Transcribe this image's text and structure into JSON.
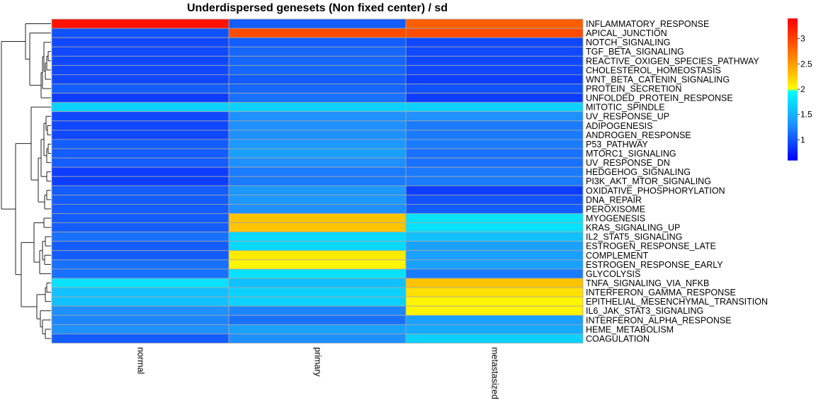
{
  "chart_data": {
    "type": "heatmap",
    "title": "Underdispersed genesets (Non fixed center) / sd",
    "columns": [
      "normal",
      "primary",
      "metastasized"
    ],
    "rows": [
      "INFLAMMATORY_RESPONSE",
      "APICAL_JUNCTION",
      "NOTCH_SIGNALING",
      "TGF_BETA_SIGNALING",
      "REACTIVE_OXIGEN_SPECIES_PATHWAY",
      "CHOLESTEROL_HOMEOSTASIS",
      "WNT_BETA_CATENIN_SIGNALING",
      "PROTEIN_SECRETION",
      "UNFOLDED_PROTEIN_RESPONSE",
      "MITOTIC_SPINDLE",
      "UV_RESPONSE_UP",
      "ADIPOGENESIS",
      "ANDROGEN_RESPONSE",
      "P53_PATHWAY",
      "MTORC1_SIGNALING",
      "UV_RESPONSE_DN",
      "HEDGEHOG_SIGNALING",
      "PI3K_AKT_MTOR_SIGNALING",
      "OXIDATIVE_PHOSPHORYLATION",
      "DNA_REPAIR",
      "PEROXISOME",
      "MYOGENESIS",
      "KRAS_SIGNALING_UP",
      "IL2_STAT5_SIGNALING",
      "ESTROGEN_RESPONSE_LATE",
      "COMPLEMENT",
      "ESTROGEN_RESPONSE_EARLY",
      "GLYCOLYSIS",
      "TNFA_SIGNALING_VIA_NFKB",
      "INTERFERON_GAMMA_RESPONSE",
      "EPITHELIAL_MESENCHYMAL_TRANSITION",
      "IL6_JAK_STAT3_SIGNALING",
      "INTERFERON_ALPHA_RESPONSE",
      "HEME_METABOLISM",
      "COAGULATION"
    ],
    "values": [
      [
        3.3,
        1.05,
        2.85
      ],
      [
        1.0,
        2.95,
        2.95
      ],
      [
        0.95,
        1.05,
        0.95
      ],
      [
        0.95,
        1.1,
        0.95
      ],
      [
        0.95,
        1.1,
        0.95
      ],
      [
        0.95,
        1.1,
        0.95
      ],
      [
        0.95,
        1.05,
        0.9
      ],
      [
        1.05,
        1.1,
        1.0
      ],
      [
        0.9,
        1.15,
        0.9
      ],
      [
        1.7,
        1.7,
        1.7
      ],
      [
        0.95,
        1.3,
        1.3
      ],
      [
        0.95,
        1.3,
        1.2
      ],
      [
        0.95,
        1.3,
        1.2
      ],
      [
        1.05,
        1.35,
        1.2
      ],
      [
        1.05,
        1.4,
        1.15
      ],
      [
        1.05,
        1.3,
        1.15
      ],
      [
        0.9,
        1.2,
        1.2
      ],
      [
        0.9,
        1.2,
        1.2
      ],
      [
        1.05,
        1.35,
        0.9
      ],
      [
        1.05,
        1.35,
        1.0
      ],
      [
        1.05,
        1.3,
        1.05
      ],
      [
        1.05,
        2.3,
        1.8
      ],
      [
        1.05,
        2.3,
        1.8
      ],
      [
        1.15,
        1.75,
        1.6
      ],
      [
        1.05,
        1.75,
        1.4
      ],
      [
        1.05,
        2.1,
        1.4
      ],
      [
        1.15,
        2.05,
        1.4
      ],
      [
        1.15,
        1.8,
        1.2
      ],
      [
        1.8,
        1.6,
        2.3
      ],
      [
        1.6,
        1.7,
        2.15
      ],
      [
        1.6,
        1.7,
        2.05
      ],
      [
        1.3,
        1.25,
        2.05
      ],
      [
        1.25,
        1.15,
        1.4
      ],
      [
        1.3,
        1.4,
        1.45
      ],
      [
        1.05,
        1.3,
        1.7
      ]
    ],
    "colorbar": {
      "ticks": [
        1,
        1.5,
        2,
        2.5,
        3
      ],
      "tick_labels": [
        "1",
        "1.5",
        "2",
        "2.5",
        "3"
      ],
      "range": [
        0.6,
        3.4
      ],
      "stops": [
        {
          "v": 0.6,
          "color": "#0000ff"
        },
        {
          "v": 1.3,
          "color": "#1e90ff"
        },
        {
          "v": 1.98,
          "color": "#00ffff"
        },
        {
          "v": 2.0,
          "color": "#ffff00"
        },
        {
          "v": 2.4,
          "color": "#ffb000"
        },
        {
          "v": 2.9,
          "color": "#ff5500"
        },
        {
          "v": 3.4,
          "color": "#ff0000"
        }
      ]
    },
    "row_dendrogram": true,
    "grid": false
  }
}
